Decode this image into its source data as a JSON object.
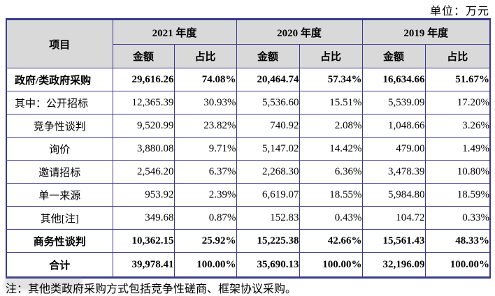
{
  "unit_label": "单位：万元",
  "table": {
    "item_header": "项目",
    "year_groups": [
      "2021 年度",
      "2020 年度",
      "2019 年度"
    ],
    "sub_headers": [
      "金额",
      "占比"
    ],
    "rows": [
      {
        "label": "政府/类政府采购",
        "bold": true,
        "align": "left",
        "values": [
          "29,616.26",
          "74.08%",
          "20,464.74",
          "57.34%",
          "16,634.66",
          "51.67%"
        ]
      },
      {
        "label": "其中：公开招标",
        "bold": false,
        "align": "left",
        "values": [
          "12,365.39",
          "30.93%",
          "5,536.60",
          "15.51%",
          "5,539.09",
          "17.20%"
        ]
      },
      {
        "label": "竞争性谈判",
        "bold": false,
        "align": "center",
        "values": [
          "9,520.99",
          "23.82%",
          "740.92",
          "2.08%",
          "1,048.66",
          "3.26%"
        ]
      },
      {
        "label": "询价",
        "bold": false,
        "align": "center",
        "values": [
          "3,880.08",
          "9.71%",
          "5,147.02",
          "14.42%",
          "479.00",
          "1.49%"
        ]
      },
      {
        "label": "邀请招标",
        "bold": false,
        "align": "center",
        "values": [
          "2,546.20",
          "6.37%",
          "2,268.30",
          "6.36%",
          "3,478.39",
          "10.80%"
        ]
      },
      {
        "label": "单一来源",
        "bold": false,
        "align": "center",
        "values": [
          "953.92",
          "2.39%",
          "6,619.07",
          "18.55%",
          "5,984.80",
          "18.59%"
        ]
      },
      {
        "label": "其他[注]",
        "bold": false,
        "align": "center",
        "values": [
          "349.68",
          "0.87%",
          "152.83",
          "0.43%",
          "104.72",
          "0.33%"
        ]
      },
      {
        "label": "商务性谈判",
        "bold": true,
        "align": "center",
        "values": [
          "10,362.15",
          "25.92%",
          "15,225.38",
          "42.66%",
          "15,561.43",
          "48.33%"
        ]
      },
      {
        "label": "合计",
        "bold": true,
        "align": "center",
        "values": [
          "39,978.41",
          "100.00%",
          "35,690.13",
          "100.00%",
          "32,196.09",
          "100.00%"
        ]
      }
    ]
  },
  "footnote": "注：其他类政府采购方式包括竞争性磋商、框架协议采购。",
  "colors": {
    "border": "#3A3A8C",
    "header_bg": "#D9D9D9",
    "text": "#000000"
  }
}
